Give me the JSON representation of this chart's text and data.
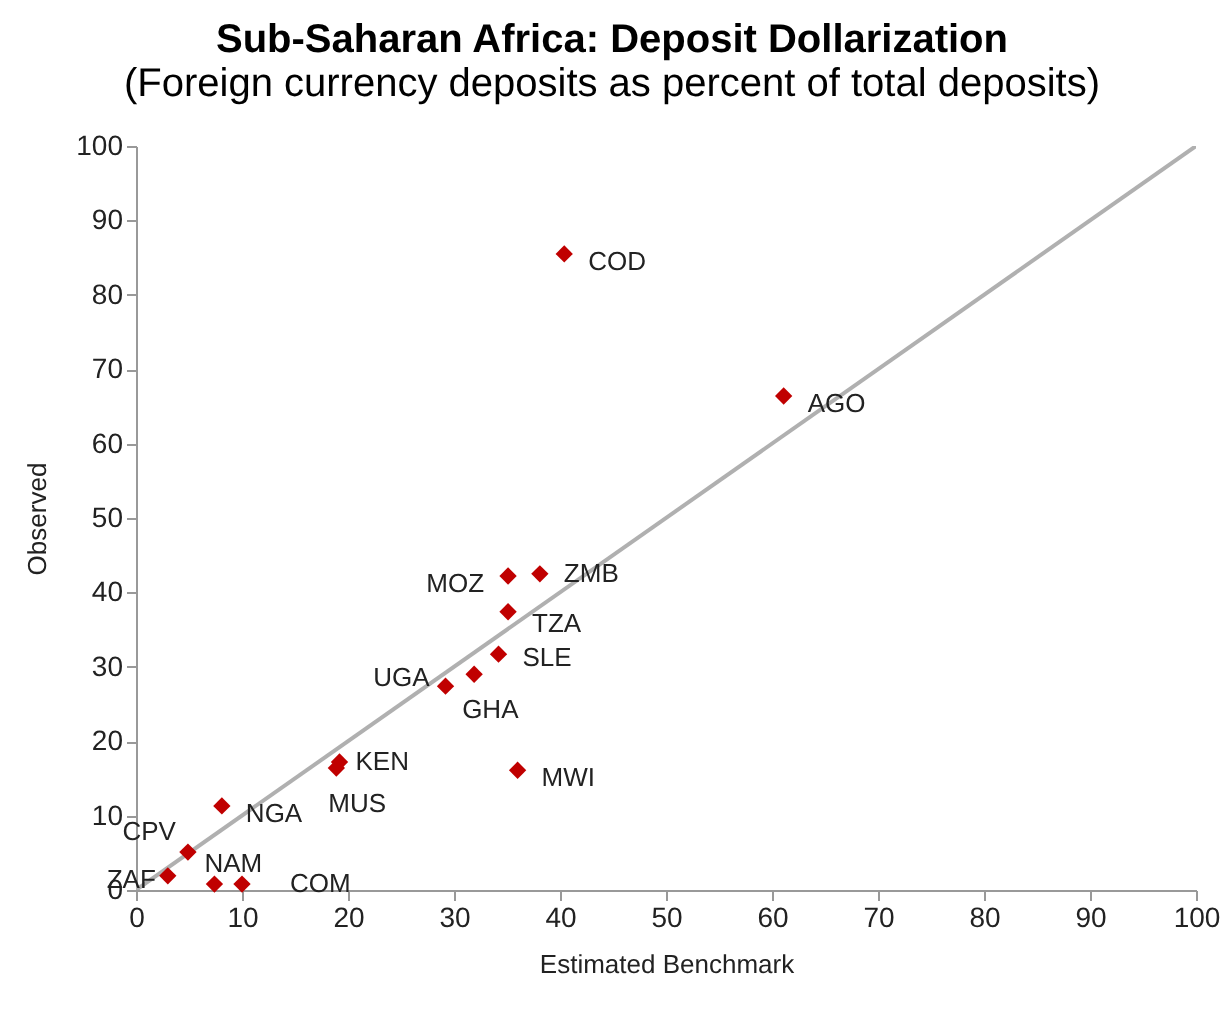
{
  "chart_data": {
    "type": "scatter",
    "title": "Sub-Saharan Africa: Deposit Dollarization",
    "subtitle": "(Foreign currency deposits as percent of total deposits)",
    "xlabel": "Estimated Benchmark",
    "ylabel": "Observed",
    "xlim": [
      0,
      100
    ],
    "ylim": [
      0,
      100
    ],
    "xticks": [
      0,
      10,
      20,
      30,
      40,
      50,
      60,
      70,
      80,
      90,
      100
    ],
    "yticks": [
      0,
      10,
      20,
      30,
      40,
      50,
      60,
      70,
      80,
      90,
      100
    ],
    "grid": false,
    "marker": "diamond",
    "series": [
      {
        "type": "line",
        "marker": "none",
        "color": "#b0b0b0",
        "x": [
          0,
          100
        ],
        "values": [
          0,
          100
        ]
      },
      {
        "color": "#c00000",
        "x": [
          40.4,
          61.1,
          38.1,
          35.1,
          35.1,
          34.2,
          29.2,
          31.9,
          19.2,
          18.9,
          36.0,
          8.1,
          4.9,
          3.0,
          7.4,
          10.0
        ],
        "values": [
          85.5,
          66.4,
          42.5,
          42.2,
          37.4,
          31.7,
          27.4,
          29.0,
          17.2,
          16.4,
          16.1,
          11.3,
          5.1,
          1.9,
          0.8,
          0.8
        ]
      }
    ],
    "annotations": [
      {
        "text": "COD",
        "x": 40.4,
        "y": 85.5
      },
      {
        "text": "AGO",
        "x": 61.1,
        "y": 66.4
      },
      {
        "text": "ZMB",
        "x": 38.1,
        "y": 42.5
      },
      {
        "text": "MOZ",
        "x": 35.1,
        "y": 42.2
      },
      {
        "text": "TZA",
        "x": 35.1,
        "y": 37.4
      },
      {
        "text": "SLE",
        "x": 34.2,
        "y": 31.7
      },
      {
        "text": "UGA",
        "x": 29.2,
        "y": 27.4
      },
      {
        "text": "GHA",
        "x": 31.9,
        "y": 29.0
      },
      {
        "text": "KEN",
        "x": 19.2,
        "y": 17.2
      },
      {
        "text": "MUS",
        "x": 18.9,
        "y": 16.4
      },
      {
        "text": "MWI",
        "x": 36.0,
        "y": 16.1
      },
      {
        "text": "NGA",
        "x": 8.1,
        "y": 11.3
      },
      {
        "text": "CPV",
        "x": 4.9,
        "y": 5.1
      },
      {
        "text": "ZAF",
        "x": 3.0,
        "y": 1.9
      },
      {
        "text": "NAM",
        "x": 7.4,
        "y": 0.8
      },
      {
        "text": "COM",
        "x": 10.0,
        "y": 0.8
      }
    ]
  }
}
